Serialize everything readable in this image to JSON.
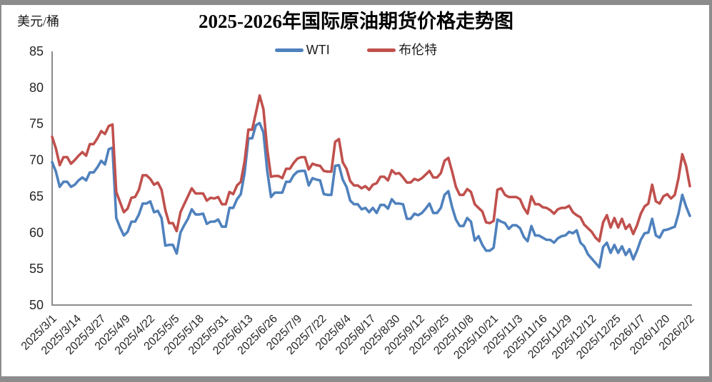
{
  "chart_data": {
    "type": "line",
    "title": "2025-2026年国际原油期货价格走势图",
    "xlabel": "",
    "ylabel": "美元/桶",
    "ylim": [
      50,
      85
    ],
    "yticks": [
      85,
      80,
      75,
      70,
      65,
      60,
      55,
      50
    ],
    "grid": false,
    "legend_position": "top",
    "axis_color": "#8c8c8c",
    "x_start_date": "2025/3/1",
    "x_end_date": "2026/2/2",
    "sample_interval_days": 2,
    "x_tick_labels": [
      "2025/3/1",
      "2025/3/14",
      "2025/3/27",
      "2025/4/9",
      "2025/4/22",
      "2025/5/5",
      "2025/5/18",
      "2025/5/31",
      "2025/6/13",
      "2025/6/26",
      "2025/7/9",
      "2025/7/22",
      "2025/8/4",
      "2025/8/17",
      "2025/8/30",
      "2025/9/12",
      "2025/9/25",
      "2025/10/8",
      "2025/10/21",
      "2025/11/3",
      "2025/11/16",
      "2025/11/29",
      "2025/12/12",
      "2025/12/25",
      "2026/1/7",
      "2026/1/20",
      "2026/2/2"
    ],
    "series": [
      {
        "key": "wti",
        "name": "WTI",
        "color": "#4F81BD",
        "values": [
          69.7,
          68.4,
          66.3,
          67.0,
          67.0,
          66.3,
          66.6,
          67.2,
          67.6,
          67.2,
          68.3,
          68.3,
          69.0,
          69.9,
          69.4,
          71.5,
          71.7,
          62.0,
          60.7,
          59.6,
          60.1,
          61.5,
          61.5,
          62.5,
          64.0,
          64.0,
          64.3,
          62.8,
          63.0,
          62.0,
          58.2,
          58.3,
          58.3,
          57.1,
          60.0,
          61.0,
          61.9,
          63.2,
          62.5,
          62.5,
          62.6,
          61.2,
          61.5,
          61.5,
          61.8,
          60.8,
          60.8,
          63.4,
          63.4,
          64.6,
          65.3,
          68.2,
          73.0,
          73.0,
          74.8,
          75.1,
          73.8,
          68.5,
          64.9,
          65.5,
          65.5,
          65.5,
          67.0,
          67.0,
          67.9,
          68.4,
          68.5,
          68.5,
          66.5,
          67.5,
          67.3,
          67.2,
          65.3,
          65.2,
          65.2,
          69.2,
          69.3,
          67.3,
          66.3,
          64.4,
          63.9,
          63.9,
          63.2,
          63.4,
          62.8,
          63.4,
          62.7,
          63.8,
          63.8,
          63.3,
          64.6,
          64.0,
          64.0,
          63.9,
          61.9,
          61.9,
          62.6,
          62.4,
          62.7,
          63.3,
          64.0,
          62.7,
          62.7,
          63.4,
          65.2,
          65.7,
          63.5,
          61.8,
          60.9,
          60.9,
          62.0,
          61.5,
          58.9,
          59.5,
          58.3,
          57.5,
          57.5,
          57.9,
          61.8,
          61.5,
          61.3,
          60.5,
          61.0,
          61.0,
          60.6,
          59.4,
          58.8,
          60.9,
          59.6,
          59.6,
          59.3,
          59.0,
          59.0,
          58.6,
          59.2,
          59.5,
          59.6,
          60.1,
          59.9,
          60.3,
          58.6,
          58.1,
          57.0,
          56.4,
          55.8,
          55.2,
          58.0,
          58.6,
          57.2,
          58.3,
          57.2,
          58.1,
          56.9,
          57.7,
          56.3,
          57.5,
          59.0,
          59.9,
          60.0,
          61.9,
          59.6,
          59.3,
          60.3,
          60.4,
          60.6,
          60.8,
          62.6,
          65.2,
          63.6,
          62.3
        ]
      },
      {
        "key": "brent",
        "name": "布伦特",
        "color": "#C0504D",
        "values": [
          73.2,
          71.6,
          69.3,
          70.4,
          70.4,
          69.5,
          70.0,
          70.6,
          71.1,
          70.6,
          72.2,
          72.2,
          73.0,
          74.0,
          73.6,
          74.7,
          74.9,
          65.6,
          64.2,
          62.8,
          63.3,
          64.8,
          64.9,
          65.9,
          67.9,
          67.9,
          67.4,
          66.6,
          66.9,
          65.9,
          63.1,
          61.3,
          61.3,
          60.2,
          62.8,
          63.9,
          65.0,
          66.1,
          65.4,
          65.4,
          65.4,
          64.4,
          64.8,
          64.7,
          64.9,
          63.9,
          63.9,
          65.6,
          65.3,
          66.5,
          67.0,
          69.8,
          74.2,
          74.2,
          76.5,
          78.9,
          77.0,
          71.5,
          67.7,
          67.8,
          67.8,
          67.5,
          68.8,
          68.8,
          69.6,
          70.2,
          70.4,
          70.4,
          68.7,
          69.5,
          69.3,
          69.2,
          68.5,
          68.4,
          68.4,
          72.5,
          72.9,
          69.7,
          68.8,
          67.1,
          66.5,
          66.5,
          66.1,
          66.4,
          65.9,
          66.6,
          66.8,
          67.7,
          67.7,
          67.2,
          68.6,
          68.1,
          68.2,
          67.6,
          66.9,
          66.9,
          67.4,
          67.2,
          67.5,
          68.0,
          68.5,
          67.6,
          67.6,
          68.2,
          69.9,
          70.3,
          68.4,
          66.3,
          65.2,
          65.2,
          66.0,
          65.6,
          63.9,
          63.4,
          62.9,
          61.4,
          61.3,
          61.6,
          65.9,
          66.1,
          65.2,
          64.9,
          64.9,
          64.9,
          64.6,
          63.4,
          62.6,
          65.0,
          63.9,
          63.9,
          63.5,
          63.4,
          63.1,
          62.6,
          63.2,
          63.4,
          63.4,
          63.7,
          62.8,
          62.4,
          62.1,
          61.1,
          60.6,
          60.1,
          59.3,
          58.8,
          61.4,
          62.4,
          60.7,
          62.0,
          60.7,
          61.9,
          60.5,
          61.1,
          59.8,
          61.0,
          62.6,
          63.6,
          64.0,
          66.6,
          64.3,
          64.0,
          65.0,
          65.3,
          64.7,
          65.2,
          67.5,
          70.8,
          69.2,
          66.4
        ]
      }
    ]
  }
}
